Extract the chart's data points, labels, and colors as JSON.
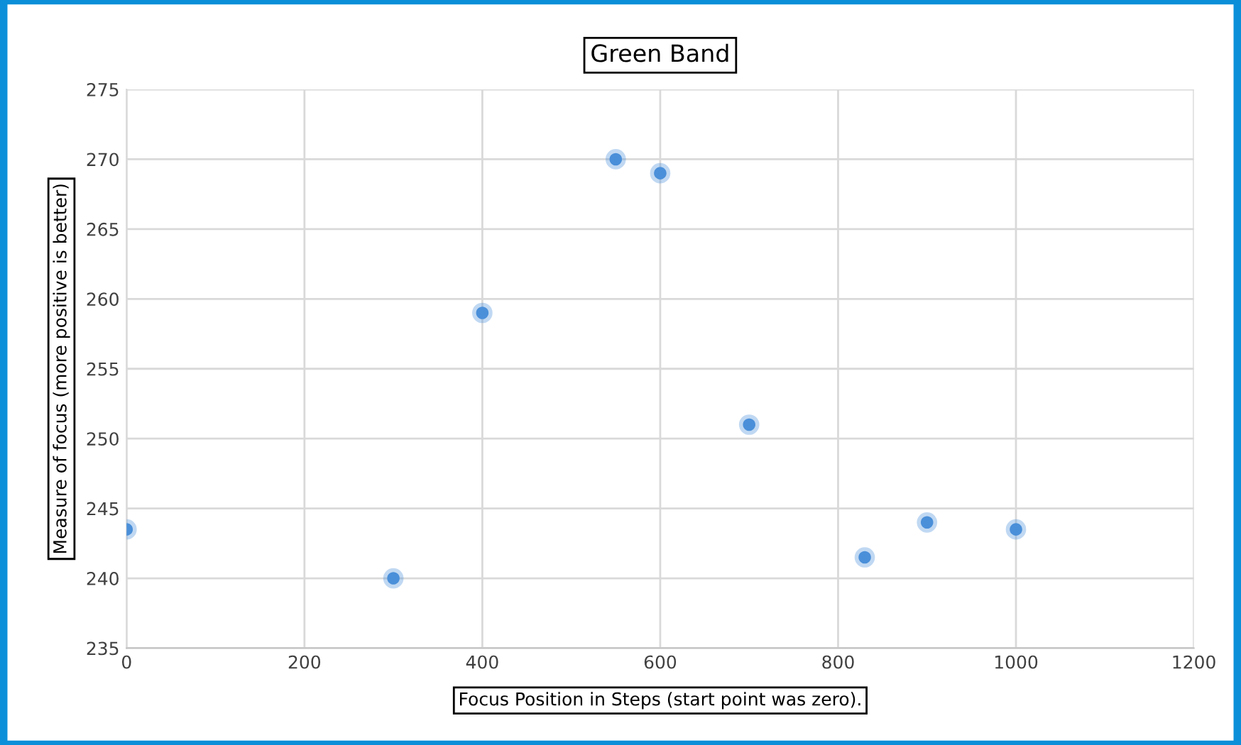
{
  "chart_data": {
    "type": "scatter",
    "title": "Green Band",
    "xlabel": "Focus Position in Steps (start point was zero).",
    "ylabel": "Measure of focus (more positive is better)",
    "x": [
      0,
      300,
      400,
      550,
      600,
      700,
      830,
      900,
      1000
    ],
    "series": [
      {
        "color": "#4a90d9",
        "values": [
          243.5,
          240,
          259,
          270,
          269,
          251,
          241.5,
          244,
          243.5
        ]
      }
    ],
    "xlim": [
      0,
      1200
    ],
    "xticks": [
      0,
      200,
      400,
      600,
      800,
      1000,
      1200
    ],
    "ylim": [
      235,
      275
    ],
    "yticks": [
      235,
      240,
      245,
      250,
      255,
      260,
      265,
      270,
      275
    ],
    "grid": true,
    "marker": "circle",
    "legend": false
  }
}
